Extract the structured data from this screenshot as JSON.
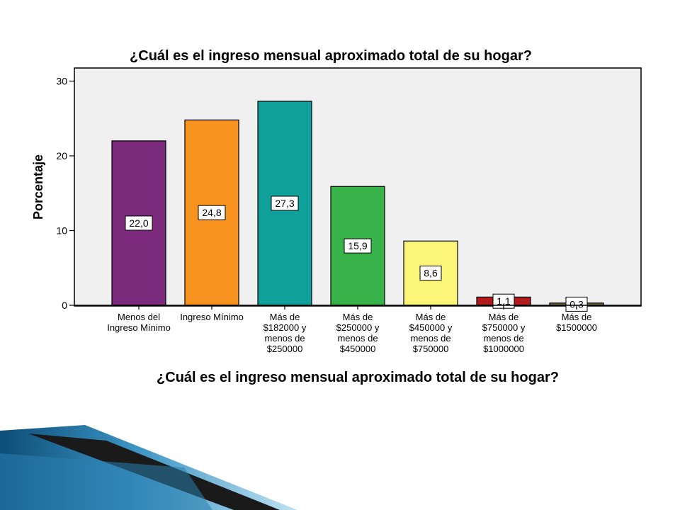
{
  "chart_data": {
    "type": "bar",
    "title": "¿Cuál es el ingreso mensual aproximado total de su hogar?",
    "xlabel": "¿Cuál es el ingreso mensual aproximado total de su hogar?",
    "ylabel": "Porcentaje",
    "ylim": [
      0,
      30
    ],
    "yticks": [
      0,
      10,
      20,
      30
    ],
    "ytick_labels": [
      "0",
      "10",
      "20",
      "30"
    ],
    "grid": false,
    "categories": [
      [
        "Menos del",
        "Ingreso Mínimo"
      ],
      [
        "Ingreso Mínimo"
      ],
      [
        "Más de",
        "$182000 y",
        "menos de",
        "$250000"
      ],
      [
        "Más de",
        "$250000 y",
        "menos de",
        "$450000"
      ],
      [
        "Más de",
        "$450000 y",
        "menos de",
        "$750000"
      ],
      [
        "Más de",
        "$750000 y",
        "menos de",
        "$1000000"
      ],
      [
        "Más de",
        "$1500000"
      ]
    ],
    "values": [
      22.0,
      24.8,
      27.3,
      15.9,
      8.6,
      1.1,
      0.3
    ],
    "value_labels": [
      "22,0",
      "24,8",
      "27,3",
      "15,9",
      "8,6",
      "1,1",
      "0,3"
    ],
    "colors": [
      "#7b2a7c",
      "#f7931e",
      "#0fa09a",
      "#37b34a",
      "#fbf57a",
      "#b01c1c",
      "#7a6a45"
    ],
    "plot_background": "#f0f0f0"
  }
}
